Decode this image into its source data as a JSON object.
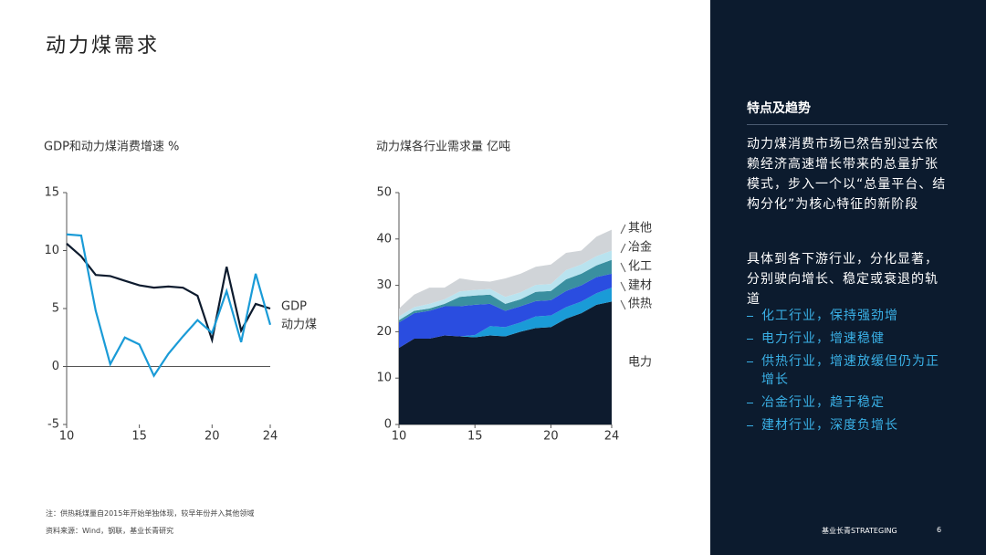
{
  "title": "动力煤需求",
  "chart_data": [
    {
      "type": "line",
      "title": "GDP和动力煤消费增速 %",
      "x": [
        10,
        11,
        12,
        13,
        14,
        15,
        16,
        17,
        18,
        19,
        20,
        21,
        22,
        23,
        24
      ],
      "xlim": [
        10,
        24
      ],
      "xticks": [
        10,
        15,
        20,
        24
      ],
      "ylim": [
        -5,
        15
      ],
      "yticks": [
        -5,
        0,
        5,
        10,
        15
      ],
      "series": [
        {
          "name": "GDP",
          "color": "#0d1b2e",
          "values": [
            10.6,
            9.5,
            7.9,
            7.8,
            7.4,
            7.0,
            6.8,
            6.9,
            6.8,
            6.1,
            2.3,
            8.6,
            3.1,
            5.4,
            5.0
          ]
        },
        {
          "name": "动力煤",
          "color": "#1a9bd7",
          "values": [
            11.4,
            11.3,
            4.8,
            0.2,
            2.5,
            1.9,
            -0.8,
            1.1,
            2.6,
            4.0,
            2.9,
            6.5,
            2.1,
            8.0,
            3.6
          ]
        }
      ]
    },
    {
      "type": "area",
      "title": "动力煤各行业需求量 亿吨",
      "x": [
        10,
        11,
        12,
        13,
        14,
        15,
        16,
        17,
        18,
        19,
        20,
        21,
        22,
        23,
        24
      ],
      "xlim": [
        10,
        24
      ],
      "xticks": [
        10,
        15,
        20,
        24
      ],
      "ylim": [
        0,
        50
      ],
      "yticks": [
        0,
        10,
        20,
        30,
        40,
        50
      ],
      "series": [
        {
          "name": "电力",
          "color": "#0d1b2e",
          "values": [
            16.5,
            18.5,
            18.5,
            19.2,
            19,
            18.8,
            19.2,
            19,
            20,
            20.8,
            21,
            22.8,
            24,
            25.8,
            26.5
          ]
        },
        {
          "name": "供热",
          "color": "#1a9bd7",
          "values": [
            0,
            0,
            0,
            0,
            0,
            0.5,
            2,
            2,
            2,
            2.5,
            2.5,
            2.5,
            2.5,
            2.5,
            3
          ]
        },
        {
          "name": "建材",
          "color": "#2a4de0",
          "values": [
            5.5,
            5.5,
            6,
            6.3,
            6.5,
            6.5,
            4.8,
            3.5,
            3.5,
            3.3,
            3.3,
            3.5,
            3.5,
            3.5,
            3
          ]
        },
        {
          "name": "化工",
          "color": "#3a8fa0",
          "values": [
            0.5,
            0.5,
            0.5,
            0.5,
            2,
            2,
            2,
            1.5,
            1.5,
            2,
            2,
            2.5,
            2.5,
            2.5,
            3
          ]
        },
        {
          "name": "冶金",
          "color": "#b9e3ef",
          "values": [
            0.8,
            0.8,
            1,
            1,
            1.2,
            1.2,
            1.2,
            1.5,
            1.5,
            1.5,
            1.5,
            2,
            2,
            2,
            2
          ]
        },
        {
          "name": "其他",
          "color": "#d0d4d8",
          "values": [
            1.7,
            2.7,
            3.5,
            2.5,
            2.8,
            2,
            1.6,
            4,
            4,
            3.9,
            4.2,
            3.7,
            3,
            4.2,
            4.5
          ]
        }
      ]
    }
  ],
  "panel": {
    "heading": "特点及趋势",
    "paragraphs": [
      "动力煤消费市场已然告别过去依赖经济高速增长带来的总量扩张模式，步入一个以“总量平台、结构分化”为核心特征的新阶段",
      "具体到各下游行业，分化显著，分别驶向增长、稳定或衰退的轨道"
    ],
    "bullets": [
      "化工行业，保持强劲增",
      "电力行业，增速稳健",
      "供热行业，增速放缓但仍为正增长",
      "冶金行业，趋于稳定",
      "建材行业，深度负增长"
    ]
  },
  "footer": {
    "note": "注：供热耗煤量自2015年开始单独体现，较早年份并入其他领域",
    "source": "资料来源：Wind，钢联，基业长青研究",
    "brand": "基业长青STRATEGING",
    "page": "6"
  }
}
